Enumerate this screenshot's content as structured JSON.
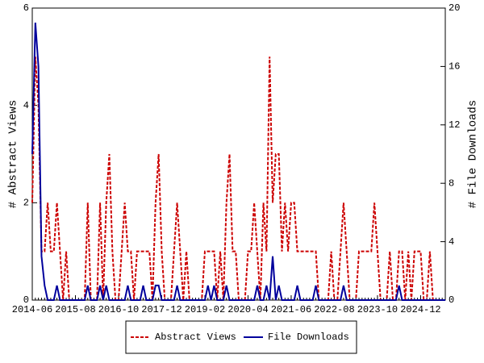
{
  "chart_data": {
    "type": "line",
    "y_label": "# Abstract Views",
    "y2_label": "# File Downloads",
    "x": [
      "2014-06",
      "2014-07",
      "2014-08",
      "2014-09",
      "2014-10",
      "2014-11",
      "2014-12",
      "2015-01",
      "2015-02",
      "2015-03",
      "2015-04",
      "2015-05",
      "2015-06",
      "2015-07",
      "2015-08",
      "2015-09",
      "2015-10",
      "2015-11",
      "2015-12",
      "2016-01",
      "2016-02",
      "2016-03",
      "2016-04",
      "2016-05",
      "2016-06",
      "2016-07",
      "2016-08",
      "2016-09",
      "2016-10",
      "2016-11",
      "2016-12",
      "2017-01",
      "2017-02",
      "2017-03",
      "2017-04",
      "2017-05",
      "2017-06",
      "2017-07",
      "2017-08",
      "2017-09",
      "2017-10",
      "2017-11",
      "2017-12",
      "2018-01",
      "2018-02",
      "2018-03",
      "2018-04",
      "2018-05",
      "2018-06",
      "2018-07",
      "2018-08",
      "2018-09",
      "2018-10",
      "2018-11",
      "2018-12",
      "2019-01",
      "2019-02",
      "2019-03",
      "2019-04",
      "2019-05",
      "2019-06",
      "2019-07",
      "2019-08",
      "2019-09",
      "2019-10",
      "2019-11",
      "2019-12",
      "2020-01",
      "2020-02",
      "2020-03",
      "2020-04",
      "2020-05",
      "2020-06",
      "2020-07",
      "2020-08",
      "2020-09",
      "2020-10",
      "2020-11",
      "2020-12",
      "2021-01",
      "2021-02",
      "2021-03",
      "2021-04",
      "2021-05",
      "2021-06",
      "2021-07",
      "2021-08",
      "2021-09",
      "2021-10",
      "2021-11",
      "2021-12",
      "2022-01",
      "2022-02",
      "2022-03",
      "2022-04",
      "2022-05",
      "2022-06",
      "2022-07",
      "2022-08",
      "2022-09",
      "2022-10",
      "2022-11",
      "2022-12",
      "2023-01",
      "2023-02",
      "2023-03",
      "2023-04",
      "2023-05",
      "2023-06",
      "2023-07",
      "2023-08",
      "2023-09",
      "2023-10",
      "2023-11",
      "2023-12",
      "2024-01",
      "2024-02",
      "2024-03",
      "2024-04",
      "2024-05",
      "2024-06",
      "2024-07",
      "2024-08",
      "2024-09",
      "2024-10",
      "2024-11",
      "2024-12",
      "2025-01",
      "2025-02",
      "2025-03",
      "2025-04",
      "2025-05",
      "2025-06",
      "2025-07",
      "2025-08"
    ],
    "xticks": [
      "2014-06",
      "2015-08",
      "2016-10",
      "2017-12",
      "2019-02",
      "2020-04",
      "2021-06",
      "2022-08",
      "2023-10",
      "2024-12"
    ],
    "ylim": [
      0,
      6
    ],
    "yticks": [
      0,
      2,
      4,
      6
    ],
    "y2lim": [
      0,
      20
    ],
    "y2ticks": [
      0,
      4,
      8,
      12,
      16,
      20
    ],
    "legend": "bottom",
    "series": [
      {
        "name": "Abstract Views",
        "color": "#cc0000",
        "dash": true,
        "values": [
          2,
          5,
          4,
          1,
          1,
          2,
          1,
          1,
          2,
          1,
          0,
          1,
          0,
          0,
          0,
          0,
          0,
          0,
          2,
          0,
          0,
          0,
          2,
          0,
          2,
          3,
          1,
          0,
          0,
          1,
          2,
          1,
          1,
          0,
          1,
          1,
          1,
          1,
          1,
          0,
          2,
          3,
          1,
          0,
          0,
          0,
          1,
          2,
          1,
          0,
          1,
          0,
          0,
          0,
          0,
          0,
          1,
          1,
          1,
          1,
          0,
          1,
          0,
          2,
          3,
          1,
          1,
          0,
          0,
          0,
          1,
          1,
          2,
          1,
          0,
          2,
          1,
          5,
          2,
          3,
          3,
          1,
          2,
          1,
          2,
          2,
          1,
          1,
          1,
          1,
          1,
          1,
          1,
          0,
          0,
          0,
          0,
          1,
          0,
          0,
          1,
          2,
          1,
          0,
          0,
          0,
          1,
          1,
          1,
          1,
          1,
          2,
          1,
          0,
          0,
          0,
          1,
          0,
          0,
          1,
          1,
          0,
          1,
          0,
          1,
          1,
          1,
          0,
          0,
          1,
          0,
          0,
          0,
          0,
          0
        ]
      },
      {
        "name": "File Downloads",
        "color": "#00009c",
        "dash": false,
        "axis": "y2",
        "values": [
          10,
          19,
          16,
          3,
          1,
          0,
          0,
          0,
          1,
          0,
          0,
          0,
          0,
          0,
          0,
          0,
          0,
          0,
          1,
          0,
          0,
          0,
          1,
          0,
          1,
          0,
          0,
          0,
          0,
          0,
          0,
          1,
          0,
          0,
          0,
          0,
          1,
          0,
          0,
          0,
          1,
          1,
          0,
          0,
          0,
          0,
          0,
          1,
          0,
          0,
          0,
          0,
          0,
          0,
          0,
          0,
          0,
          1,
          0,
          1,
          0,
          0,
          0,
          1,
          0,
          0,
          0,
          0,
          0,
          0,
          0,
          0,
          0,
          1,
          0,
          0,
          1,
          0,
          3,
          0,
          1,
          0,
          0,
          0,
          0,
          0,
          1,
          0,
          0,
          0,
          0,
          0,
          1,
          0,
          0,
          0,
          0,
          0,
          0,
          0,
          0,
          1,
          0,
          0,
          0,
          0,
          0,
          0,
          0,
          0,
          0,
          0,
          0,
          0,
          0,
          0,
          0,
          0,
          0,
          1,
          0,
          0,
          0,
          0,
          0,
          0,
          0,
          0,
          0,
          0,
          0,
          0,
          0,
          0,
          0
        ]
      }
    ]
  }
}
